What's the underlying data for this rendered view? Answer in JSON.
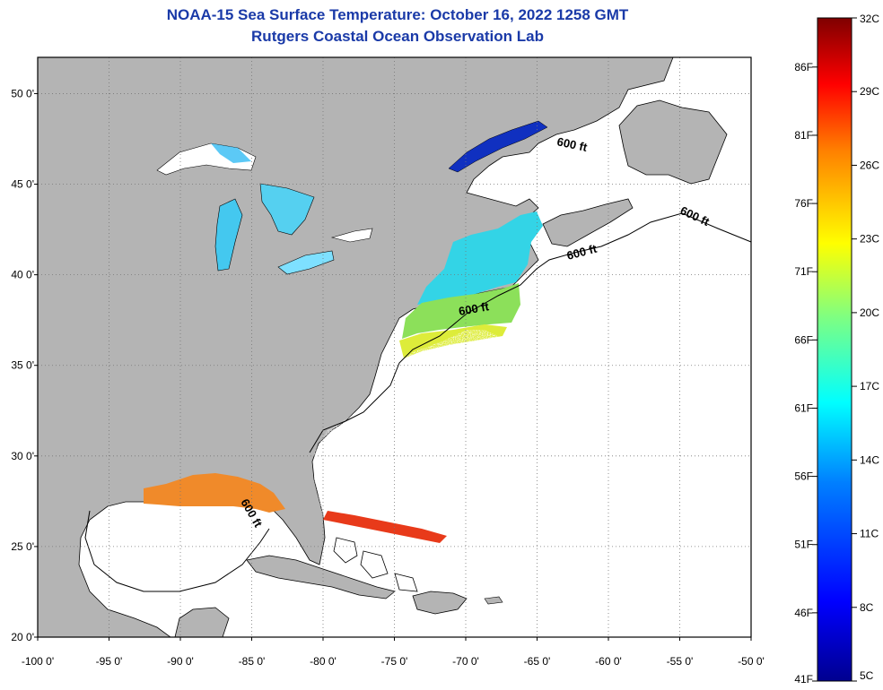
{
  "title": {
    "line1": "NOAA-15 Sea Surface Temperature:  October 16, 2022 1258 GMT",
    "line2": "Rutgers Coastal Ocean Observation Lab"
  },
  "map": {
    "lon_range": [
      -100,
      -50
    ],
    "lat_range": [
      20,
      52
    ],
    "lat_labels": [
      "50 0'",
      "45 0'",
      "40 0'",
      "35 0'",
      "30 0'",
      "25 0'",
      "20 0'"
    ],
    "lon_labels": [
      "-100 0'",
      "-95 0'",
      "-90 0'",
      "-85 0'",
      "-80 0'",
      "-75 0'",
      "-70 0'",
      "-65 0'",
      "-60 0'",
      "-55 0'",
      "-50 0'"
    ],
    "land_color": "#b4b4b4",
    "ocean_color": "#ffffff",
    "grid": "dotted",
    "contour_labels": [
      "600 ft",
      "600 ft",
      "600 ft",
      "600 ft",
      "600 ft"
    ]
  },
  "colorbar": {
    "celsius_labels": [
      "32C",
      "29C",
      "26C",
      "23C",
      "20C",
      "17C",
      "14C",
      "11C",
      "8C",
      "5C"
    ],
    "fahrenheit_labels": [
      "86F",
      "81F",
      "76F",
      "71F",
      "66F",
      "61F",
      "56F",
      "51F",
      "46F",
      "41F"
    ],
    "colors": [
      "#7f0000",
      "#ff0000",
      "#ff8000",
      "#ffff00",
      "#80ff80",
      "#00ffff",
      "#0080ff",
      "#0000ff",
      "#00008f"
    ]
  }
}
